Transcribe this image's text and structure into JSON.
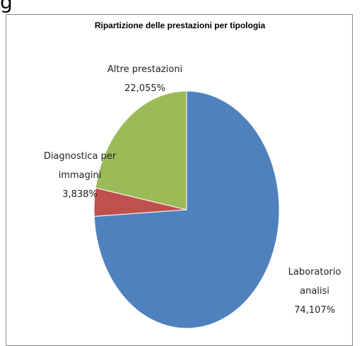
{
  "fragment": "g",
  "chart_data": {
    "type": "pie",
    "title": "Ripartizione  delle prestazioni per tipologia",
    "categories": [
      "Laboratorio analisi",
      "Diagnostica per immagini",
      "Altre prestazioni"
    ],
    "values": [
      74.107,
      3.838,
      22.055
    ],
    "value_labels": [
      "74,107%",
      "3,838%",
      "22,055%"
    ],
    "colors": [
      "#4f81bd",
      "#c0504d",
      "#9bbb59"
    ]
  }
}
